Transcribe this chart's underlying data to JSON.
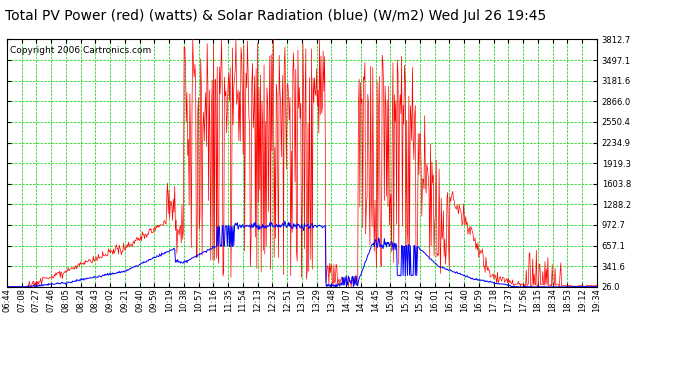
{
  "title": "Total PV Power (red) (watts) & Solar Radiation (blue) (W/m2) Wed Jul 26 19:45",
  "copyright": "Copyright 2006 Cartronics.com",
  "bg_color": "#ffffff",
  "plot_bg_color": "#ffffff",
  "grid_color": "#00cc00",
  "red_color": "#ff0000",
  "blue_color": "#0000ff",
  "yticks": [
    26.0,
    341.6,
    657.1,
    972.7,
    1288.2,
    1603.8,
    1919.3,
    2234.9,
    2550.4,
    2866.0,
    3181.6,
    3497.1,
    3812.7
  ],
  "ylim_min": 26.0,
  "ylim_max": 3812.7,
  "xtick_labels": [
    "06:44",
    "07:08",
    "07:27",
    "07:46",
    "08:05",
    "08:24",
    "08:43",
    "09:02",
    "09:21",
    "09:40",
    "09:59",
    "10:19",
    "10:38",
    "10:57",
    "11:16",
    "11:35",
    "11:54",
    "12:13",
    "12:32",
    "12:51",
    "13:10",
    "13:29",
    "13:48",
    "14:07",
    "14:26",
    "14:45",
    "15:04",
    "15:23",
    "15:42",
    "16:01",
    "16:21",
    "16:40",
    "16:59",
    "17:18",
    "17:37",
    "17:56",
    "18:15",
    "18:34",
    "18:53",
    "19:12",
    "19:34"
  ],
  "title_fontsize": 10,
  "copyright_fontsize": 6.5,
  "tick_fontsize": 6
}
